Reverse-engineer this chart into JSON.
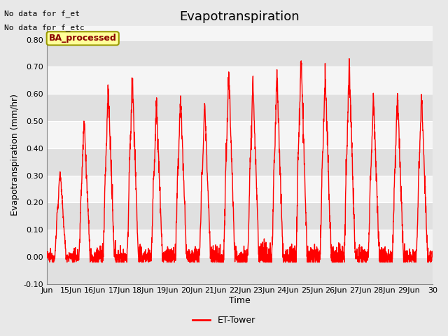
{
  "title": "Evapotranspiration",
  "ylabel": "Evapotranspiration (mm/hr)",
  "xlabel": "Time",
  "ylim": [
    -0.1,
    0.85
  ],
  "yticks": [
    -0.1,
    0.0,
    0.1,
    0.2,
    0.3,
    0.4,
    0.5,
    0.6,
    0.7,
    0.8
  ],
  "line_color": "#FF0000",
  "bg_color": "#E8E8E8",
  "plot_bg_light": "#F5F5F5",
  "plot_bg_dark": "#E0E0E0",
  "annotation_line1": "No data for f_et",
  "annotation_line2": "No data for f_etc",
  "box_label": "BA_processed",
  "box_facecolor": "#FFFF99",
  "box_edgecolor": "#999900",
  "box_text_color": "#8B0000",
  "legend_label": "ET-Tower",
  "x_tick_labels": [
    "Jun",
    "15Jun",
    "16Jun",
    "17Jun",
    "18Jun",
    "19Jun",
    "20Jun",
    "21Jun",
    "22Jun",
    "23Jun",
    "24Jun",
    "25Jun",
    "26Jun",
    "27Jun",
    "28Jun",
    "29Jun",
    "30"
  ],
  "title_fontsize": 13,
  "axis_label_fontsize": 9,
  "tick_fontsize": 8,
  "annotation_fontsize": 8,
  "daily_peaks": [
    0.32,
    0.51,
    0.63,
    0.67,
    0.57,
    0.6,
    0.57,
    0.69,
    0.66,
    0.68,
    0.75,
    0.68,
    0.71,
    0.59,
    0.61,
    0.6
  ],
  "rise_hour": 8,
  "peak_hour": 13,
  "fall_hour": 19,
  "pts_per_hour": 6
}
